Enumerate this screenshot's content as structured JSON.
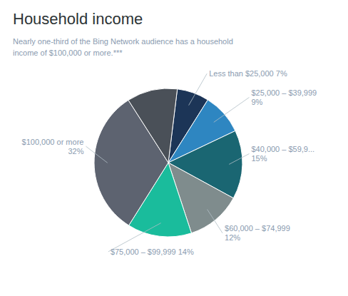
{
  "chart_data": {
    "type": "pie",
    "title": "Household income",
    "subtitle": "Nearly one-third of the Bing Network audience has a household\nincome of $100,000 or more.***",
    "categories": [
      "Less than $25,000 7%",
      "$25,000 – $39,999\n9%",
      "$40,000 – $59,9...\n15%",
      "$60,000 – $74,999\n12%",
      "$75,000 – $99,999 14%",
      "$100,000 or more\n32%",
      null
    ],
    "values": [
      7,
      9,
      15,
      12,
      14,
      32,
      11
    ],
    "colors": [
      "#1c3557",
      "#2e86c1",
      "#1a6672",
      "#7f8c8d",
      "#1abc9c",
      "#5d6370",
      "#4a5058"
    ]
  }
}
